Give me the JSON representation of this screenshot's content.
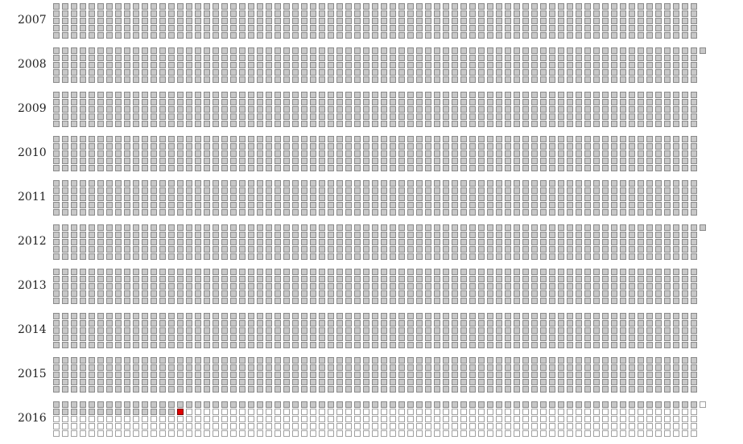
{
  "title": "",
  "columns_per_row": 73,
  "rows_per_year": 5,
  "years": [
    {
      "label": "2007",
      "days": 365
    },
    {
      "label": "2008",
      "days": 366
    },
    {
      "label": "2009",
      "days": 365
    },
    {
      "label": "2010",
      "days": 365
    },
    {
      "label": "2011",
      "days": 365
    },
    {
      "label": "2012",
      "days": 366
    },
    {
      "label": "2013",
      "days": 365
    },
    {
      "label": "2014",
      "days": 365
    },
    {
      "label": "2015",
      "days": 365
    },
    {
      "label": "2016",
      "days": 366
    }
  ],
  "today": {
    "year": "2016",
    "day_index": 87
  },
  "colors": {
    "past": "#c8c8c8",
    "future": "#ffffff",
    "today": "#e00000",
    "border": "#8a8a8a"
  }
}
